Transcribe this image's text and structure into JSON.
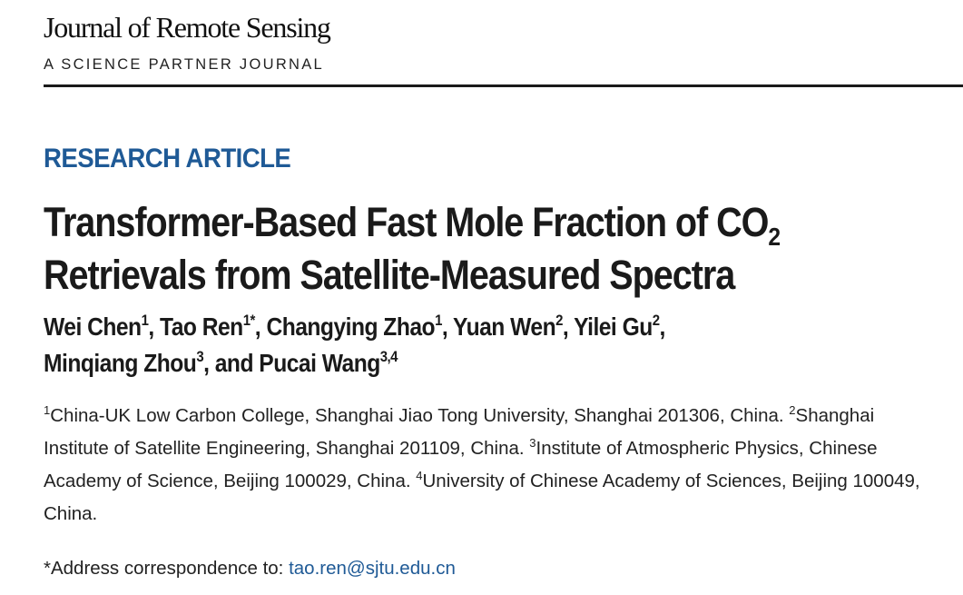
{
  "journal": {
    "name": "Journal of Remote Sensing",
    "subtitle": "A SCIENCE PARTNER JOURNAL"
  },
  "article": {
    "type": "RESEARCH ARTICLE",
    "title_line1": "Transformer-Based Fast Mole Fraction of CO",
    "title_line1_sub": "2",
    "title_line2": "Retrievals from Satellite-Measured Spectra"
  },
  "authors": [
    {
      "name": "Wei Chen",
      "sup": "1",
      "sep": ", "
    },
    {
      "name": "Tao Ren",
      "sup": "1*",
      "sep": ", "
    },
    {
      "name": "Changying Zhao",
      "sup": "1",
      "sep": ", "
    },
    {
      "name": "Yuan Wen",
      "sup": "2",
      "sep": ", "
    },
    {
      "name": "Yilei Gu",
      "sup": "2",
      "sep": ","
    },
    {
      "name": "Minqiang Zhou",
      "sup": "3",
      "sep": ", and "
    },
    {
      "name": "Pucai Wang",
      "sup": "3,4",
      "sep": ""
    }
  ],
  "affiliations": [
    {
      "num": "1",
      "text": "China-UK Low Carbon College, Shanghai Jiao Tong University, Shanghai 201306, China. "
    },
    {
      "num": "2",
      "text": "Shanghai Institute of Satellite Engineering, Shanghai 201109, China. "
    },
    {
      "num": "3",
      "text": "Institute of Atmospheric Physics, Chinese Academy of Science, Beijing 100029, China. "
    },
    {
      "num": "4",
      "text": "University of Chinese Academy of Sciences, Beijing 100049, China."
    }
  ],
  "correspondence": {
    "label": "*Address correspondence to: ",
    "email": "tao.ren@sjtu.edu.cn"
  }
}
